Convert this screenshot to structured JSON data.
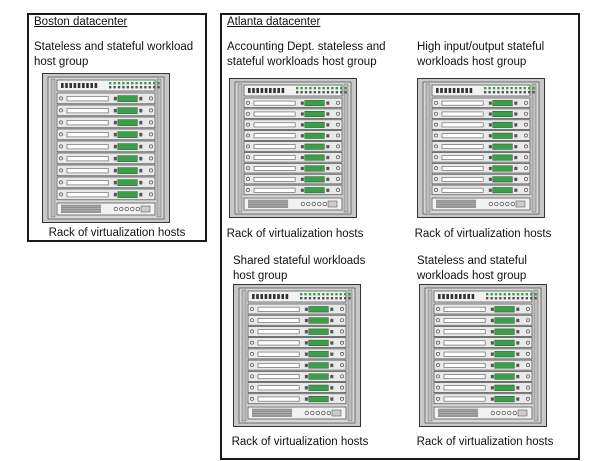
{
  "datacenters": [
    {
      "name": "Boston datacenter",
      "host_groups": [
        {
          "label": "Stateless and stateful workload host group",
          "rack_label": "Rack of virtualization hosts",
          "servers": 9
        }
      ]
    },
    {
      "name": "Atlanta datacenter",
      "host_groups": [
        {
          "label": "Accounting Dept. stateless and stateful workloads host group",
          "rack_label": "Rack of virtualization hosts",
          "servers": 9
        },
        {
          "label": "High input/output stateful workloads host group",
          "rack_label": "Rack of virtualization hosts",
          "servers": 9
        },
        {
          "label": "Shared stateful workloads host group",
          "rack_label": "Rack of virtualization hosts",
          "servers": 9
        },
        {
          "label": "Stateless and stateful workloads host group",
          "rack_label": "Rack of virtualization hosts",
          "servers": 9
        }
      ]
    }
  ],
  "colors": {
    "rack_frame": "#c8c8c8",
    "slot": "#e9e9e9",
    "led": "#3c9e4a",
    "border": "#1a1a1a"
  }
}
